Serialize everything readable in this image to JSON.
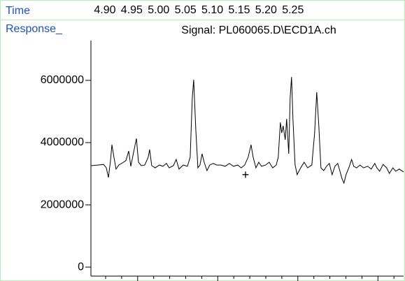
{
  "chart_data": {
    "type": "line",
    "x_label": "Time",
    "y_label": "Response_",
    "title": "Signal: PL060065.D\\ECD1A.ch",
    "xlim": [
      4.874,
      5.456
    ],
    "xticks": [
      {
        "value": 4.9,
        "label": "4.90"
      },
      4.95,
      {
        "value": 5.0,
        "label": "5.00"
      },
      5.05,
      {
        "value": 5.1,
        "label": "5.10"
      },
      5.15,
      {
        "value": 5.2,
        "label": "5.20"
      },
      5.25
    ],
    "ylim": [
      -290000,
      7280000
    ],
    "yticks": [
      0,
      2000000,
      4000000,
      6000000
    ],
    "series": [
      {
        "color": "#000000",
        "x": [
          4.874,
          4.887,
          4.8974,
          4.9026,
          4.9065,
          4.9104,
          4.913,
          4.9169,
          4.9208,
          4.926,
          4.9326,
          4.9391,
          4.9443,
          4.9482,
          4.9534,
          4.9586,
          4.9625,
          4.9677,
          4.9742,
          4.9807,
          4.9833,
          4.9872,
          4.9937,
          5.0015,
          5.008,
          5.0145,
          5.0197,
          5.0275,
          5.0327,
          5.0379,
          5.0457,
          5.0536,
          5.0588,
          5.0627,
          5.0653,
          5.0692,
          5.0731,
          5.077,
          5.0809,
          5.0848,
          5.09,
          5.0952,
          5.1017,
          5.1082,
          5.116,
          5.1238,
          5.1316,
          5.1394,
          5.1472,
          5.1537,
          5.1602,
          5.1667,
          5.172,
          5.1759,
          5.1811,
          5.1863,
          5.1915,
          5.1993,
          5.2058,
          5.2123,
          5.2189,
          5.2227,
          5.2266,
          5.2292,
          5.2318,
          5.2357,
          5.2383,
          5.2422,
          5.2448,
          5.2474,
          5.25,
          5.2539,
          5.2578,
          5.2643,
          5.2708,
          5.2774,
          5.2852,
          5.2904,
          5.2943,
          5.2982,
          5.3021,
          5.3073,
          5.3125,
          5.3177,
          5.3229,
          5.3281,
          5.3333,
          5.3372,
          5.3411,
          5.345,
          5.3489,
          5.3541,
          5.3593,
          5.3632,
          5.3684,
          5.3749,
          5.3814,
          5.3892,
          5.3957,
          5.4023,
          5.4062,
          5.4114,
          5.4179,
          5.4244,
          5.4296,
          5.4361,
          5.4413,
          5.4478,
          5.456
        ],
        "values": [
          3260000,
          3280000,
          3300000,
          3190000,
          2880000,
          3420000,
          3930000,
          3530000,
          3150000,
          3280000,
          3350000,
          3420000,
          3730000,
          3240000,
          3690000,
          4130000,
          3370000,
          3260000,
          3280000,
          3530000,
          3780000,
          3260000,
          3190000,
          3280000,
          3240000,
          3330000,
          3190000,
          3260000,
          3460000,
          3150000,
          3280000,
          3240000,
          3530000,
          5440000,
          6020000,
          4430000,
          3190000,
          3280000,
          3640000,
          3370000,
          3100000,
          3280000,
          3330000,
          3280000,
          3280000,
          3240000,
          3330000,
          3240000,
          3280000,
          3190000,
          3280000,
          3530000,
          3930000,
          3530000,
          3190000,
          3370000,
          3240000,
          3280000,
          3370000,
          3190000,
          3280000,
          3530000,
          4650000,
          4310000,
          4540000,
          4090000,
          4760000,
          3640000,
          5440000,
          6110000,
          4760000,
          3300000,
          2970000,
          3190000,
          3370000,
          3190000,
          3280000,
          4310000,
          5620000,
          4540000,
          3190000,
          3100000,
          3240000,
          3330000,
          2970000,
          3240000,
          3330000,
          3100000,
          2850000,
          2700000,
          2970000,
          3190000,
          3460000,
          3240000,
          3190000,
          3280000,
          3190000,
          3240000,
          3150000,
          3330000,
          3190000,
          3080000,
          3300000,
          3190000,
          3010000,
          3190000,
          3080000,
          3150000,
          3060000
        ]
      }
    ]
  }
}
